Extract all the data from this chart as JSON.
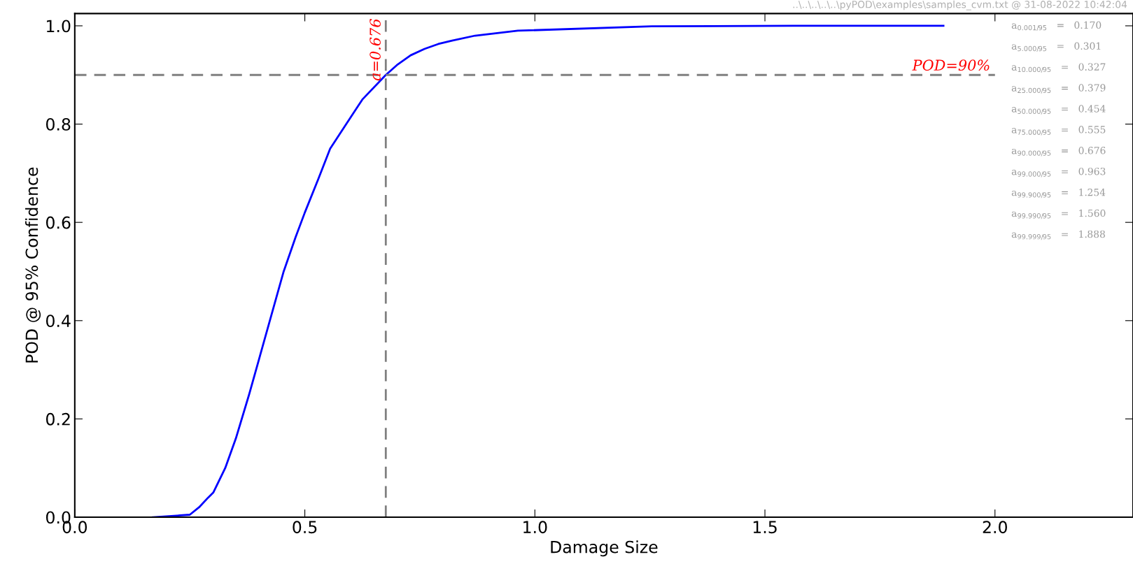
{
  "chart_data": {
    "type": "line",
    "xlabel": "Damage Size",
    "ylabel": "POD @ 95% Confidence",
    "x": [
      0.17,
      0.25,
      0.27,
      0.29,
      0.301,
      0.327,
      0.35,
      0.379,
      0.4,
      0.43,
      0.454,
      0.48,
      0.5,
      0.53,
      0.555,
      0.59,
      0.625,
      0.676,
      0.7,
      0.73,
      0.76,
      0.79,
      0.82,
      0.87,
      0.963,
      1.254,
      1.56,
      1.888
    ],
    "series": [
      {
        "color": "#0000ff",
        "values": [
          0.0,
          0.005,
          0.02,
          0.04,
          0.05,
          0.1,
          0.16,
          0.25,
          0.32,
          0.42,
          0.5,
          0.57,
          0.62,
          0.69,
          0.75,
          0.8,
          0.85,
          0.9,
          0.92,
          0.94,
          0.953,
          0.963,
          0.97,
          0.98,
          0.99,
          0.999,
          1.0,
          1.0
        ]
      }
    ],
    "xlim": [
      0,
      2.3
    ],
    "xticks": [
      {
        "value": 0,
        "label": "0.0"
      },
      0.5,
      {
        "value": 1,
        "label": "1.0"
      },
      1.5,
      {
        "value": 2,
        "label": "2.0"
      }
    ],
    "ylim": [
      0,
      1.025
    ],
    "yticks": [
      {
        "value": 0,
        "label": "0.0"
      },
      0.2,
      0.4,
      0.6,
      0.8,
      {
        "value": 1,
        "label": "1.0"
      }
    ],
    "grid": false,
    "marker": "none",
    "line_style": "solid",
    "ref_lines": [
      {
        "axis": "y",
        "value": 0.9,
        "label": "POD=90%",
        "color": "#808080",
        "line_style": "dashed"
      },
      {
        "axis": "x",
        "value": 0.676,
        "label": "a=0.676",
        "color": "#808080",
        "line_style": "dashed"
      }
    ],
    "annotations": [
      "..\\..\\..\\..\\..\\pyPOD\\examples\\samples_cvm.txt @ 31-08-2022 10:42:04",
      "a$_{0.001/95}$   =   0.170",
      "a$_{5.000/95}$   =   0.301",
      "a$_{10.000/95}$   =   0.327",
      "a$_{25.000/95}$   =   0.379",
      "a$_{50.000/95}$   =   0.454",
      "a$_{75.000/95}$   =   0.555",
      "a$_{90.000/95}$   =   0.676",
      "a$_{99.000/95}$   =   0.963",
      "a$_{99.900/95}$   =   1.254",
      "a$_{99.990/95}$   =   1.560",
      "a$_{99.999/95}$   =   1.888"
    ]
  }
}
